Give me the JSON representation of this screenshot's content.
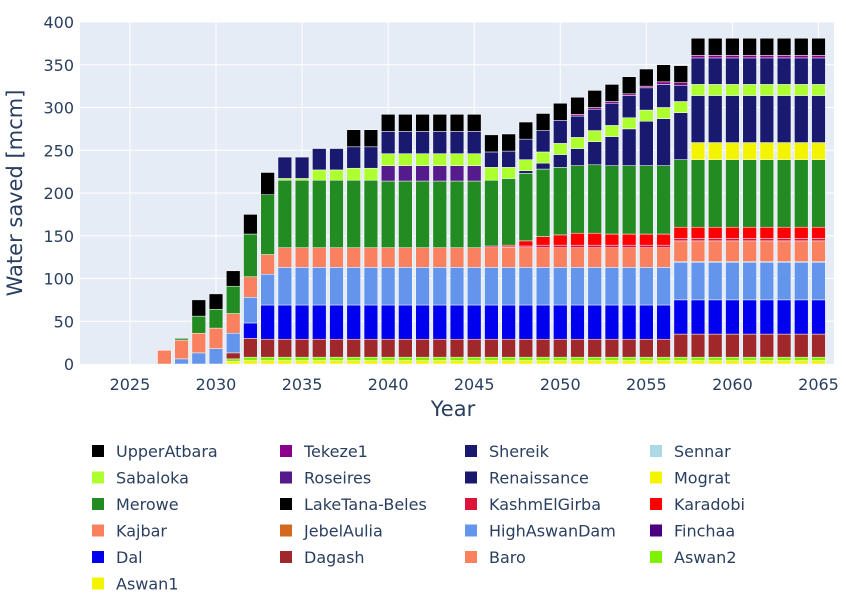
{
  "chart_data": {
    "type": "bar",
    "stacked": true,
    "xlabel": "Year",
    "ylabel": "Water saved [mcm]",
    "xlim": [
      2022.1,
      2065.9
    ],
    "ylim": [
      0,
      400
    ],
    "x_ticks": [
      2025,
      2030,
      2035,
      2040,
      2045,
      2050,
      2055,
      2060,
      2065
    ],
    "y_ticks": [
      0,
      50,
      100,
      150,
      200,
      250,
      300,
      350,
      400
    ],
    "grid": true,
    "legend_position": "bottom",
    "legend_columns": 4,
    "years": [
      2027,
      2028,
      2029,
      2030,
      2031,
      2032,
      2033,
      2034,
      2035,
      2036,
      2037,
      2038,
      2039,
      2040,
      2041,
      2042,
      2043,
      2044,
      2045,
      2046,
      2047,
      2048,
      2049,
      2050,
      2051,
      2052,
      2053,
      2054,
      2055,
      2056,
      2057,
      2058,
      2059,
      2060,
      2061,
      2062,
      2063,
      2064,
      2065
    ],
    "series": [
      {
        "name": "Aswan1",
        "color": "#f4f400",
        "values": [
          0,
          0,
          0,
          0,
          3,
          4,
          4,
          4,
          4,
          4,
          4,
          4,
          4,
          4,
          4,
          4,
          4,
          4,
          4,
          4,
          4,
          4,
          4,
          4,
          4,
          4,
          4,
          4,
          4,
          4,
          4,
          4,
          4,
          4,
          4,
          4,
          4,
          4,
          4
        ]
      },
      {
        "name": "Aswan2",
        "color": "#7ef000",
        "values": [
          0,
          0,
          0,
          0,
          3,
          4,
          4,
          4,
          4,
          4,
          4,
          4,
          4,
          4,
          4,
          4,
          4,
          4,
          4,
          4,
          4,
          4,
          4,
          4,
          4,
          4,
          4,
          4,
          4,
          4,
          4,
          4,
          4,
          4,
          4,
          4,
          4,
          4,
          4
        ]
      },
      {
        "name": "Baro",
        "color": "#f98160",
        "values": [
          16,
          0,
          0,
          0,
          0,
          0,
          0,
          0,
          0,
          0,
          0,
          0,
          0,
          0,
          0,
          0,
          0,
          0,
          0,
          0,
          0,
          0,
          0,
          0,
          0,
          0,
          0,
          0,
          0,
          0,
          0,
          0,
          0,
          0,
          0,
          0,
          0,
          0,
          0
        ]
      },
      {
        "name": "Dagash",
        "color": "#a0282a",
        "values": [
          0,
          0,
          0,
          0,
          7,
          22,
          21,
          21,
          21,
          21,
          21,
          21,
          21,
          21,
          21,
          21,
          21,
          21,
          21,
          21,
          21,
          21,
          21,
          21,
          21,
          21,
          21,
          21,
          21,
          21,
          27,
          27,
          27,
          27,
          27,
          27,
          27,
          27,
          27
        ]
      },
      {
        "name": "Dal",
        "color": "#0000ee",
        "values": [
          0,
          0,
          0,
          0,
          0,
          18,
          40,
          40,
          40,
          40,
          40,
          40,
          40,
          40,
          40,
          40,
          40,
          40,
          40,
          40,
          40,
          40,
          40,
          40,
          40,
          40,
          40,
          40,
          40,
          40,
          40,
          40,
          40,
          40,
          40,
          40,
          40,
          40,
          40
        ]
      },
      {
        "name": "HighAswanDam",
        "color": "#6495ed",
        "values": [
          0,
          6,
          13,
          18,
          23,
          30,
          36,
          44,
          44,
          44,
          44,
          44,
          44,
          44,
          44,
          44,
          44,
          44,
          44,
          44,
          44,
          44,
          44,
          44,
          44,
          44,
          44,
          44,
          44,
          44,
          44,
          44,
          44,
          44,
          44,
          44,
          44,
          44,
          44
        ]
      },
      {
        "name": "JebelAulia",
        "color": "#d2691e",
        "values": [
          0,
          0,
          0,
          0,
          0,
          0,
          0,
          0,
          0,
          0,
          0,
          0,
          0,
          0,
          0,
          0,
          0,
          0,
          0,
          0,
          0,
          0,
          0,
          0,
          0,
          0,
          0,
          0,
          0,
          0,
          1,
          1,
          1,
          1,
          1,
          1,
          1,
          1,
          1
        ]
      },
      {
        "name": "Kajbar",
        "color": "#f98160",
        "values": [
          0,
          22,
          23,
          24,
          23,
          24,
          23,
          23,
          23,
          23,
          23,
          23,
          23,
          23,
          23,
          23,
          23,
          23,
          23,
          23,
          23,
          23,
          23,
          23,
          23,
          23,
          23,
          23,
          23,
          23,
          24,
          24,
          24,
          24,
          24,
          24,
          24,
          24,
          24
        ]
      },
      {
        "name": "KashmElGirba",
        "color": "#dc143c",
        "values": [
          0,
          0,
          0,
          0,
          0,
          0,
          0,
          0,
          0,
          0,
          0,
          0,
          0,
          0,
          0,
          0,
          0,
          0,
          0,
          2,
          1,
          2,
          3,
          3,
          3,
          3,
          3,
          3,
          3,
          3,
          3,
          3,
          3,
          3,
          3,
          3,
          3,
          3,
          3
        ]
      },
      {
        "name": "Karadobi",
        "color": "#ff0000",
        "values": [
          0,
          0,
          0,
          0,
          0,
          0,
          0,
          0,
          0,
          0,
          0,
          0,
          0,
          0,
          0,
          0,
          0,
          0,
          0,
          0,
          2,
          6,
          10,
          12,
          14,
          14,
          13,
          13,
          13,
          13,
          13,
          13,
          13,
          13,
          13,
          13,
          13,
          13,
          13
        ]
      },
      {
        "name": "Merowe",
        "color": "#228b22",
        "values": [
          0,
          2,
          20,
          22,
          32,
          50,
          70,
          79,
          79,
          79,
          79,
          79,
          79,
          78,
          78,
          78,
          78,
          78,
          78,
          77,
          78,
          79,
          79,
          79,
          79,
          80,
          80,
          80,
          80,
          80,
          79,
          79,
          79,
          79,
          79,
          79,
          79,
          79,
          79
        ]
      },
      {
        "name": "Finchaa",
        "color": "#4b0082",
        "values": [
          0,
          0,
          0,
          0,
          0,
          0,
          0,
          0,
          0,
          0,
          0,
          0,
          0,
          0,
          0,
          0,
          0,
          0,
          0,
          0,
          0,
          0,
          0,
          0,
          0,
          0,
          0,
          0,
          0,
          0,
          0,
          0,
          0,
          0,
          0,
          0,
          0,
          0,
          0
        ]
      },
      {
        "name": "LakeTana-Beles",
        "color": "#000000",
        "values": [
          0,
          0,
          0,
          0,
          0,
          0,
          0,
          0,
          0,
          0,
          0,
          0,
          0,
          0,
          0,
          0,
          0,
          0,
          0,
          0,
          0,
          0,
          0,
          0,
          0,
          0,
          0,
          0,
          0,
          0,
          0,
          0,
          0,
          0,
          0,
          0,
          0,
          0,
          0
        ]
      },
      {
        "name": "Mograt",
        "color": "#f4f400",
        "values": [
          0,
          0,
          0,
          0,
          0,
          0,
          0,
          0,
          0,
          0,
          0,
          0,
          0,
          0,
          0,
          0,
          0,
          0,
          0,
          0,
          0,
          0,
          0,
          0,
          0,
          0,
          0,
          0,
          0,
          0,
          0,
          20,
          20,
          20,
          20,
          20,
          20,
          20,
          20
        ]
      },
      {
        "name": "Roseires",
        "color": "#551a8b",
        "values": [
          0,
          0,
          0,
          0,
          0,
          0,
          0,
          0,
          0,
          0,
          0,
          0,
          0,
          18,
          18,
          18,
          18,
          18,
          18,
          0,
          0,
          0,
          0,
          0,
          0,
          0,
          0,
          0,
          0,
          0,
          0,
          0,
          0,
          0,
          0,
          0,
          0,
          0,
          0
        ]
      },
      {
        "name": "Renaissance",
        "color": "#191970",
        "values": [
          0,
          0,
          0,
          0,
          0,
          0,
          0,
          0,
          0,
          0,
          0,
          0,
          0,
          0,
          0,
          0,
          0,
          0,
          0,
          0,
          0,
          3,
          7,
          15,
          20,
          27,
          34,
          43,
          52,
          55,
          55,
          55,
          55,
          55,
          55,
          55,
          55,
          55,
          55
        ]
      },
      {
        "name": "Sabaloka",
        "color": "#adff2f",
        "values": [
          0,
          0,
          0,
          0,
          0,
          0,
          0,
          2,
          2,
          12,
          12,
          14,
          14,
          14,
          14,
          14,
          14,
          14,
          14,
          15,
          13,
          13,
          13,
          13,
          13,
          13,
          13,
          13,
          13,
          13,
          13,
          13,
          13,
          13,
          13,
          13,
          13,
          13,
          13
        ]
      },
      {
        "name": "Sennar",
        "color": "#add8e6",
        "values": [
          0,
          0,
          0,
          0,
          0,
          0,
          0,
          0,
          0,
          0,
          0,
          0,
          0,
          0,
          0,
          0,
          0,
          0,
          0,
          0,
          0,
          0,
          0,
          0,
          0,
          0,
          0,
          0,
          0,
          0,
          0,
          0,
          0,
          0,
          0,
          0,
          0,
          0,
          0
        ]
      },
      {
        "name": "Shereik",
        "color": "#191970",
        "values": [
          0,
          0,
          0,
          0,
          0,
          0,
          0,
          25,
          25,
          25,
          25,
          25,
          25,
          26,
          26,
          26,
          26,
          26,
          26,
          18,
          19,
          24,
          25,
          27,
          25,
          25,
          26,
          26,
          26,
          27,
          19,
          31,
          31,
          31,
          31,
          31,
          31,
          31,
          31
        ]
      },
      {
        "name": "Tekeze1",
        "color": "#8b008b",
        "values": [
          0,
          0,
          0,
          0,
          0,
          0,
          0,
          0,
          0,
          0,
          0,
          0,
          0,
          0,
          0,
          0,
          0,
          0,
          0,
          0,
          0,
          0,
          0,
          0,
          2,
          2,
          2,
          2,
          2,
          3,
          3,
          3,
          3,
          3,
          3,
          3,
          3,
          3,
          3
        ]
      },
      {
        "name": "UpperAtbara",
        "color": "#000000",
        "values": [
          0,
          0,
          19,
          18,
          18,
          23,
          26,
          0,
          0,
          0,
          0,
          20,
          20,
          20,
          20,
          20,
          20,
          20,
          20,
          20,
          20,
          20,
          20,
          20,
          20,
          20,
          20,
          20,
          20,
          20,
          20,
          20,
          20,
          20,
          20,
          20,
          20,
          20,
          20
        ]
      }
    ],
    "legend_order": [
      "UpperAtbara",
      "Tekeze1",
      "Shereik",
      "Sennar",
      "Sabaloka",
      "Roseires",
      "Renaissance",
      "Mograt",
      "Merowe",
      "LakeTana-Beles",
      "KashmElGirba",
      "Karadobi",
      "Kajbar",
      "JebelAulia",
      "HighAswanDam",
      "Finchaa",
      "Dal",
      "Dagash",
      "Baro",
      "Aswan2",
      "Aswan1"
    ]
  }
}
